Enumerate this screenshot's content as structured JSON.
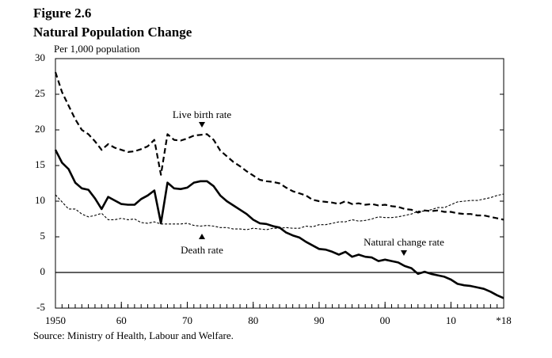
{
  "chart_data": {
    "type": "line",
    "title": "Figure 2.6",
    "subtitle": "Natural Population Change",
    "y_label": "Per 1,000 population",
    "source": "Source:  Ministry of Health, Labour and Welfare.",
    "x": [
      1950,
      1951,
      1952,
      1953,
      1954,
      1955,
      1956,
      1957,
      1958,
      1959,
      1960,
      1961,
      1962,
      1963,
      1964,
      1965,
      1966,
      1967,
      1968,
      1969,
      1970,
      1971,
      1972,
      1973,
      1974,
      1975,
      1976,
      1977,
      1978,
      1979,
      1980,
      1981,
      1982,
      1983,
      1984,
      1985,
      1986,
      1987,
      1988,
      1989,
      1990,
      1991,
      1992,
      1993,
      1994,
      1995,
      1996,
      1997,
      1998,
      1999,
      2000,
      2001,
      2002,
      2003,
      2004,
      2005,
      2006,
      2007,
      2008,
      2009,
      2010,
      2011,
      2012,
      2013,
      2014,
      2015,
      2016,
      2017,
      2018
    ],
    "series": [
      {
        "name": "Live birth rate",
        "color": "#000000",
        "style": "dashed",
        "values": [
          28.1,
          25.3,
          23.4,
          21.5,
          20.0,
          19.4,
          18.4,
          17.2,
          18.0,
          17.5,
          17.2,
          16.9,
          17.0,
          17.3,
          17.7,
          18.6,
          13.7,
          19.4,
          18.6,
          18.5,
          18.8,
          19.2,
          19.3,
          19.4,
          18.6,
          17.1,
          16.3,
          15.5,
          14.9,
          14.2,
          13.6,
          13.0,
          12.8,
          12.7,
          12.5,
          11.9,
          11.4,
          11.1,
          10.8,
          10.2,
          10.0,
          9.9,
          9.8,
          9.6,
          10.0,
          9.6,
          9.7,
          9.5,
          9.6,
          9.4,
          9.5,
          9.3,
          9.2,
          8.9,
          8.8,
          8.4,
          8.7,
          8.6,
          8.7,
          8.5,
          8.5,
          8.3,
          8.2,
          8.2,
          8.0,
          8.0,
          7.8,
          7.6,
          7.4
        ]
      },
      {
        "name": "Death rate",
        "color": "#000000",
        "style": "dotted",
        "values": [
          10.9,
          9.9,
          8.9,
          8.9,
          8.2,
          7.8,
          8.0,
          8.3,
          7.4,
          7.4,
          7.6,
          7.4,
          7.5,
          7.0,
          6.9,
          7.1,
          6.8,
          6.8,
          6.8,
          6.8,
          6.9,
          6.6,
          6.5,
          6.6,
          6.5,
          6.3,
          6.3,
          6.1,
          6.1,
          6.0,
          6.2,
          6.1,
          6.0,
          6.2,
          6.2,
          6.3,
          6.2,
          6.2,
          6.5,
          6.4,
          6.7,
          6.7,
          6.9,
          7.1,
          7.1,
          7.4,
          7.2,
          7.3,
          7.5,
          7.8,
          7.7,
          7.7,
          7.8,
          8.0,
          8.2,
          8.6,
          8.6,
          8.8,
          9.1,
          9.1,
          9.5,
          9.9,
          10.0,
          10.1,
          10.1,
          10.3,
          10.5,
          10.8,
          11.0
        ]
      },
      {
        "name": "Natural change rate",
        "color": "#000000",
        "style": "solid",
        "values": [
          17.2,
          15.4,
          14.5,
          12.6,
          11.8,
          11.6,
          10.4,
          8.9,
          10.6,
          10.1,
          9.6,
          9.5,
          9.5,
          10.3,
          10.8,
          11.5,
          6.9,
          12.6,
          11.8,
          11.7,
          11.9,
          12.6,
          12.8,
          12.8,
          12.1,
          10.8,
          10.0,
          9.4,
          8.8,
          8.2,
          7.4,
          6.9,
          6.8,
          6.5,
          6.3,
          5.6,
          5.2,
          4.9,
          4.3,
          3.8,
          3.3,
          3.2,
          2.9,
          2.5,
          2.9,
          2.2,
          2.5,
          2.2,
          2.1,
          1.6,
          1.8,
          1.6,
          1.4,
          0.9,
          0.6,
          -0.2,
          0.1,
          -0.2,
          -0.4,
          -0.6,
          -1.0,
          -1.6,
          -1.8,
          -1.9,
          -2.1,
          -2.3,
          -2.7,
          -3.2,
          -3.6
        ]
      }
    ],
    "xlim": [
      1950,
      2018
    ],
    "xticks": [
      1950,
      {
        "value": 1960,
        "label": "60"
      },
      {
        "value": 1970,
        "label": "70"
      },
      {
        "value": 1980,
        "label": "80"
      },
      {
        "value": 1990,
        "label": "90"
      },
      {
        "value": 2000,
        "label": "00"
      },
      {
        "value": 2010,
        "label": "10"
      },
      {
        "value": 2018,
        "label": "*18"
      }
    ],
    "ylim": [
      -5,
      30
    ],
    "yticks": [
      -5,
      0,
      5,
      10,
      15,
      20,
      25,
      30
    ],
    "grid": false
  }
}
